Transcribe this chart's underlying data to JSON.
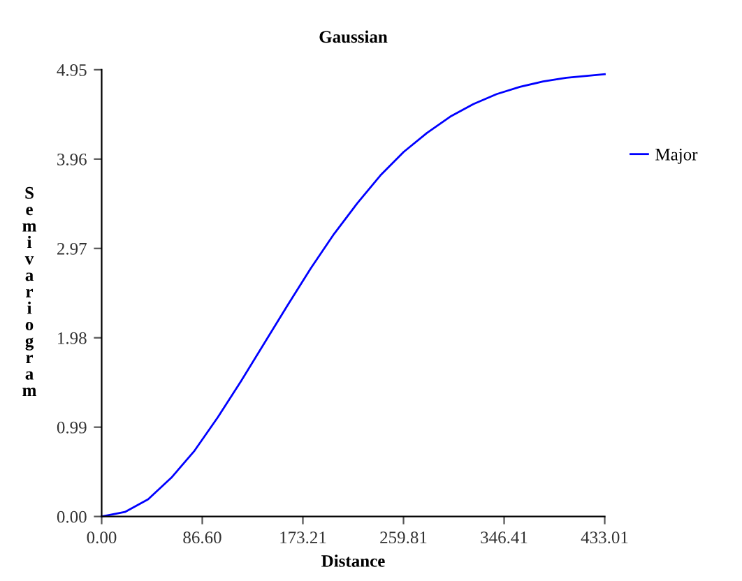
{
  "chart_data": {
    "type": "line",
    "title": "Gaussian",
    "xlabel": "Distance",
    "ylabel": "Semivariogram",
    "x": [
      0,
      20,
      40,
      60,
      80,
      100,
      120,
      140,
      160,
      180,
      200,
      220,
      240,
      260,
      280,
      300,
      320,
      340,
      360,
      380,
      400,
      433.01
    ],
    "series": [
      {
        "name": "Major",
        "color": "#0000ff",
        "values": [
          0,
          0.05,
          0.19,
          0.43,
          0.73,
          1.1,
          1.5,
          1.92,
          2.34,
          2.75,
          3.13,
          3.47,
          3.78,
          4.04,
          4.25,
          4.43,
          4.57,
          4.68,
          4.76,
          4.82,
          4.86,
          4.9
        ]
      }
    ],
    "xlim": [
      0,
      433.01
    ],
    "ylim": [
      0,
      4.95
    ],
    "xticks": [
      {
        "value": 0,
        "label": "0.00"
      },
      {
        "value": 86.6,
        "label": "86.60"
      },
      173.21,
      259.81,
      346.41,
      433.01
    ],
    "yticks": [
      {
        "value": 0,
        "label": "0.00"
      },
      0.99,
      1.98,
      2.97,
      3.96,
      4.95
    ],
    "grid": false,
    "legend": "right",
    "marker": "none",
    "line_style": "solid"
  }
}
